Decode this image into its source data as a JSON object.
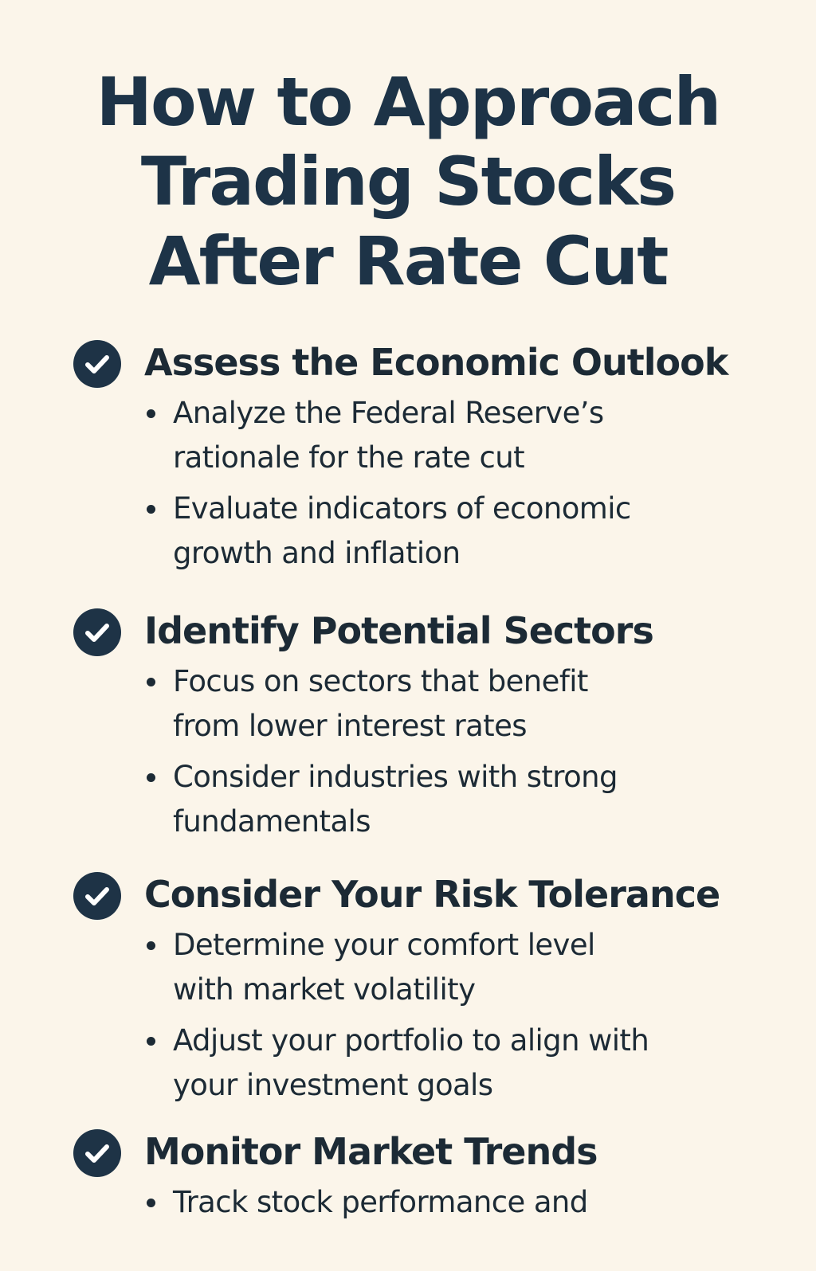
{
  "title": {
    "line1": "How to Approach",
    "line2": "Trading Stocks",
    "line3": "After Rate Cut"
  },
  "icon": "check-circle-icon",
  "colors": {
    "background": "#fbf5ea",
    "title": "#1d3347",
    "icon": "#1e3346",
    "text": "#1c2a35"
  },
  "sections": [
    {
      "heading": "Assess the Economic Outlook",
      "bullets": [
        {
          "line1": "Analyze the Federal Reserve’s",
          "line2": "rationale for the rate cut"
        },
        {
          "line1": "Evaluate indicators of economic",
          "line2": "growth and inflation"
        }
      ]
    },
    {
      "heading": "Identify Potential Sectors",
      "bullets": [
        {
          "line1": "Focus on sectors that benefit",
          "line2": "from lower interest rates"
        },
        {
          "line1": "Consider industries with strong",
          "line2": "fundamentals"
        }
      ]
    },
    {
      "heading": "Consider Your Risk Tolerance",
      "bullets": [
        {
          "line1": "Determine your comfort level",
          "line2": "with market volatility"
        },
        {
          "line1": "Adjust your portfolio to align with",
          "line2": "your investment goals"
        }
      ]
    },
    {
      "heading": "Monitor Market Trends",
      "bullets": [
        {
          "line1": "Track stock performance and",
          "line2": ""
        }
      ]
    }
  ]
}
